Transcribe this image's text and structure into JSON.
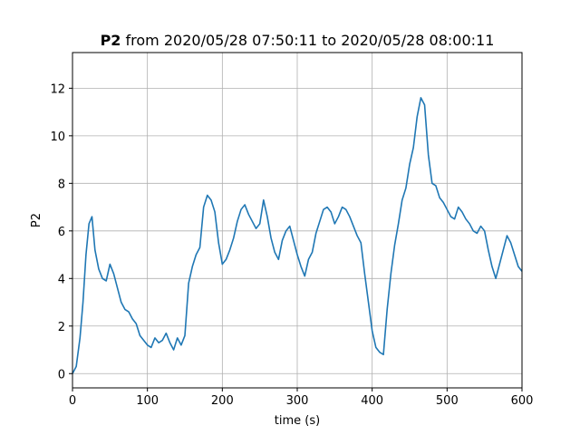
{
  "chart_data": {
    "type": "line",
    "title": {
      "bold": "P2",
      "rest": " from 2020/05/28 07:50:11 to 2020/05/28 08:00:11"
    },
    "xlabel": "time (s)",
    "ylabel": "P2",
    "xlim": [
      0,
      600
    ],
    "ylim": [
      -0.6,
      13.5
    ],
    "xticks": [
      0,
      100,
      200,
      300,
      400,
      500,
      600
    ],
    "yticks": [
      0,
      2,
      4,
      6,
      8,
      10,
      12
    ],
    "grid": true,
    "series": [
      {
        "color": "#1f77b4",
        "x": [
          0,
          5,
          10,
          14,
          18,
          22,
          26,
          30,
          35,
          40,
          45,
          50,
          55,
          60,
          65,
          70,
          75,
          80,
          85,
          90,
          95,
          100,
          105,
          110,
          115,
          120,
          125,
          130,
          135,
          140,
          145,
          150,
          155,
          160,
          165,
          170,
          175,
          180,
          185,
          190,
          195,
          200,
          205,
          210,
          215,
          220,
          225,
          230,
          235,
          240,
          245,
          250,
          255,
          260,
          265,
          270,
          275,
          280,
          285,
          290,
          295,
          300,
          305,
          310,
          315,
          320,
          325,
          330,
          335,
          340,
          345,
          350,
          355,
          360,
          365,
          370,
          375,
          380,
          385,
          390,
          395,
          400,
          405,
          410,
          415,
          420,
          425,
          430,
          435,
          440,
          445,
          450,
          455,
          460,
          465,
          470,
          475,
          480,
          485,
          490,
          495,
          500,
          505,
          510,
          515,
          520,
          525,
          530,
          535,
          540,
          545,
          550,
          555,
          560,
          565,
          570,
          575,
          580,
          585,
          590,
          595,
          600
        ],
        "values": [
          0.0,
          0.3,
          1.5,
          3.0,
          5.0,
          6.3,
          6.6,
          5.2,
          4.4,
          4.0,
          3.9,
          4.6,
          4.2,
          3.6,
          3.0,
          2.7,
          2.6,
          2.3,
          2.1,
          1.6,
          1.4,
          1.2,
          1.1,
          1.5,
          1.3,
          1.4,
          1.7,
          1.3,
          1.0,
          1.5,
          1.2,
          1.6,
          3.8,
          4.5,
          5.0,
          5.3,
          7.0,
          7.5,
          7.3,
          6.8,
          5.5,
          4.6,
          4.8,
          5.2,
          5.7,
          6.4,
          6.9,
          7.1,
          6.7,
          6.4,
          6.1,
          6.3,
          7.3,
          6.6,
          5.7,
          5.1,
          4.8,
          5.6,
          6.0,
          6.2,
          5.6,
          5.0,
          4.5,
          4.1,
          4.8,
          5.1,
          5.9,
          6.4,
          6.9,
          7.0,
          6.8,
          6.3,
          6.6,
          7.0,
          6.9,
          6.6,
          6.2,
          5.8,
          5.5,
          4.2,
          3.0,
          1.8,
          1.1,
          0.9,
          0.8,
          2.7,
          4.2,
          5.4,
          6.3,
          7.3,
          7.8,
          8.8,
          9.5,
          10.8,
          11.6,
          11.3,
          9.2,
          8.0,
          7.9,
          7.4,
          7.2,
          6.9,
          6.6,
          6.5,
          7.0,
          6.8,
          6.5,
          6.3,
          6.0,
          5.9,
          6.2,
          6.0,
          5.2,
          4.5,
          4.0,
          4.6,
          5.2,
          5.8,
          5.5,
          5.0,
          4.5,
          4.3
        ]
      }
    ]
  }
}
